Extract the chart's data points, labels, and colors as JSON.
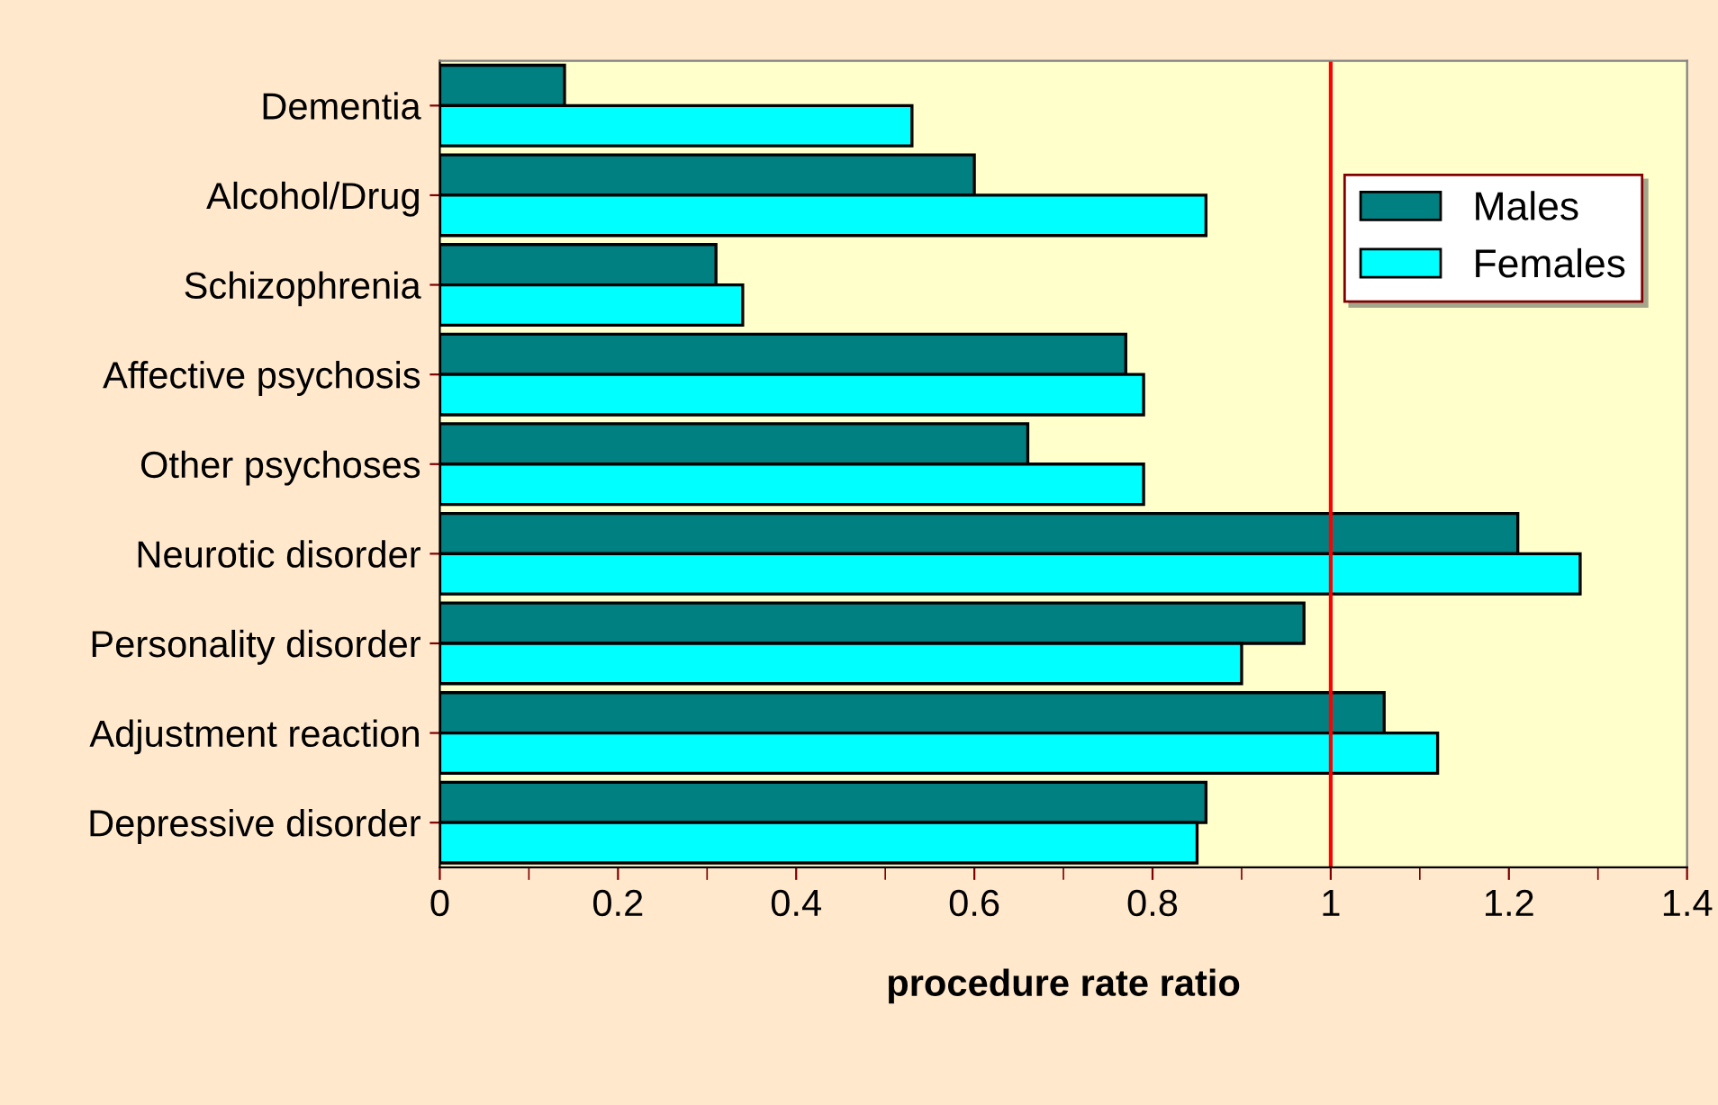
{
  "chart_data": {
    "type": "bar",
    "orientation": "horizontal",
    "xlabel": "procedure rate ratio",
    "categories": [
      "Dementia",
      "Alcohol/Drug",
      "Schizophrenia",
      "Affective psychosis",
      "Other psychoses",
      "Neurotic disorder",
      "Personality disorder",
      "Adjustment reaction",
      "Depressive disorder"
    ],
    "series": [
      {
        "name": "Males",
        "color": "#008080",
        "values": [
          0.14,
          0.6,
          0.31,
          0.77,
          0.66,
          1.21,
          0.97,
          1.06,
          0.86
        ]
      },
      {
        "name": "Females",
        "color": "#00ffff",
        "values": [
          0.53,
          0.86,
          0.34,
          0.79,
          0.79,
          1.28,
          0.9,
          1.12,
          0.85
        ]
      }
    ],
    "xlim": [
      0,
      1.4
    ],
    "xticks": [
      0,
      0.2,
      0.4,
      0.6,
      0.8,
      1,
      1.2,
      1.4
    ],
    "ref_lines": [
      {
        "axis": "x",
        "value": 1,
        "color": "#ff0000"
      }
    ],
    "legend": "right",
    "grid": false
  }
}
